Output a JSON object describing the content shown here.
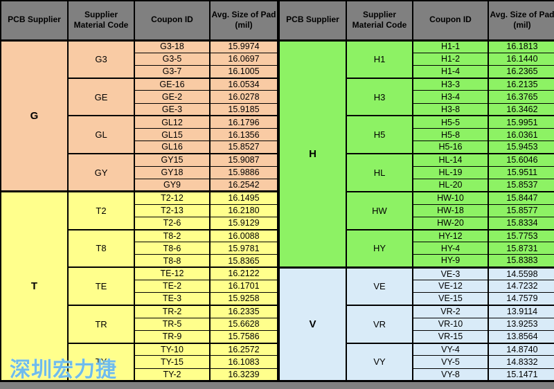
{
  "columns": [
    "PCB Supplier",
    "Supplier\nMaterial Code",
    "Coupon ID",
    "Avg. Size of Pad\n(mil)"
  ],
  "colors": {
    "header_bg": "#808080",
    "page_bg": "#808080",
    "border": "#000000",
    "supplier_g": "#F9CBA4",
    "supplier_t": "#FFFF8C",
    "supplier_h": "#8DF264",
    "supplier_v": "#D9EBF8",
    "watermark_blue": "#6FBCEC"
  },
  "watermark": {
    "text": "深圳宏力捷"
  },
  "tables": [
    {
      "name": "left",
      "suppliers": [
        {
          "supplier": "G",
          "color": "#F9CBA4",
          "groups": [
            {
              "code": "G3",
              "rows": [
                [
                  "G3-18",
                  "15.9974"
                ],
                [
                  "G3-5",
                  "16.0697"
                ],
                [
                  "G3-7",
                  "16.1005"
                ]
              ]
            },
            {
              "code": "GE",
              "rows": [
                [
                  "GE-16",
                  "16.0534"
                ],
                [
                  "GE-2",
                  "16.0278"
                ],
                [
                  "GE-3",
                  "15.9185"
                ]
              ]
            },
            {
              "code": "GL",
              "rows": [
                [
                  "GL12",
                  "16.1796"
                ],
                [
                  "GL15",
                  "16.1356"
                ],
                [
                  "GL16",
                  "15.8527"
                ]
              ]
            },
            {
              "code": "GY",
              "rows": [
                [
                  "GY15",
                  "15.9087"
                ],
                [
                  "GY18",
                  "15.9886"
                ],
                [
                  "GY9",
                  "16.2542"
                ]
              ]
            }
          ]
        },
        {
          "supplier": "T",
          "color": "#FFFF8C",
          "groups": [
            {
              "code": "T2",
              "rows": [
                [
                  "T2-12",
                  "16.1495"
                ],
                [
                  "T2-13",
                  "16.2180"
                ],
                [
                  "T2-6",
                  "15.9129"
                ]
              ]
            },
            {
              "code": "T8",
              "rows": [
                [
                  "T8-2",
                  "16.0088"
                ],
                [
                  "T8-6",
                  "15.9781"
                ],
                [
                  "T8-8",
                  "15.8365"
                ]
              ]
            },
            {
              "code": "TE",
              "rows": [
                [
                  "TE-12",
                  "16.2122"
                ],
                [
                  "TE-2",
                  "16.1701"
                ],
                [
                  "TE-3",
                  "15.9258"
                ]
              ]
            },
            {
              "code": "TR",
              "rows": [
                [
                  "TR-2",
                  "16.2335"
                ],
                [
                  "TR-5",
                  "15.6628"
                ],
                [
                  "TR-9",
                  "15.7586"
                ]
              ]
            },
            {
              "code": "TY",
              "rows": [
                [
                  "TY-10",
                  "16.2572"
                ],
                [
                  "TY-15",
                  "16.1083"
                ],
                [
                  "TY-2",
                  "16.3239"
                ]
              ]
            }
          ]
        }
      ]
    },
    {
      "name": "right",
      "suppliers": [
        {
          "supplier": "H",
          "color": "#8DF264",
          "groups": [
            {
              "code": "H1",
              "rows": [
                [
                  "H1-1",
                  "16.1813"
                ],
                [
                  "H1-2",
                  "16.1440"
                ],
                [
                  "H1-4",
                  "16.2365"
                ]
              ]
            },
            {
              "code": "H3",
              "rows": [
                [
                  "H3-3",
                  "16.2135"
                ],
                [
                  "H3-4",
                  "16.3765"
                ],
                [
                  "H3-8",
                  "16.3462"
                ]
              ]
            },
            {
              "code": "H5",
              "rows": [
                [
                  "H5-5",
                  "15.9951"
                ],
                [
                  "H5-8",
                  "16.0361"
                ],
                [
                  "H5-16",
                  "15.9453"
                ]
              ]
            },
            {
              "code": "HL",
              "rows": [
                [
                  "HL-14",
                  "15.6046"
                ],
                [
                  "HL-19",
                  "15.9511"
                ],
                [
                  "HL-20",
                  "15.8537"
                ]
              ]
            },
            {
              "code": "HW",
              "rows": [
                [
                  "HW-10",
                  "15.8447"
                ],
                [
                  "HW-18",
                  "15.8577"
                ],
                [
                  "HW-20",
                  "15.8334"
                ]
              ]
            },
            {
              "code": "HY",
              "rows": [
                [
                  "HY-12",
                  "15.7753"
                ],
                [
                  "HY-4",
                  "15.8731"
                ],
                [
                  "HY-9",
                  "15.8383"
                ]
              ]
            }
          ]
        },
        {
          "supplier": "V",
          "color": "#D9EBF8",
          "groups": [
            {
              "code": "VE",
              "rows": [
                [
                  "VE-3",
                  "14.5598"
                ],
                [
                  "VE-12",
                  "14.7232"
                ],
                [
                  "VE-15",
                  "14.7579"
                ]
              ]
            },
            {
              "code": "VR",
              "rows": [
                [
                  "VR-2",
                  "13.9114"
                ],
                [
                  "VR-10",
                  "13.9253"
                ],
                [
                  "VR-15",
                  "13.8564"
                ]
              ]
            },
            {
              "code": "VY",
              "rows": [
                [
                  "VY-4",
                  "14.8740"
                ],
                [
                  "VY-5",
                  "14.8332"
                ],
                [
                  "VY-8",
                  "15.1471"
                ]
              ]
            }
          ]
        }
      ]
    }
  ]
}
